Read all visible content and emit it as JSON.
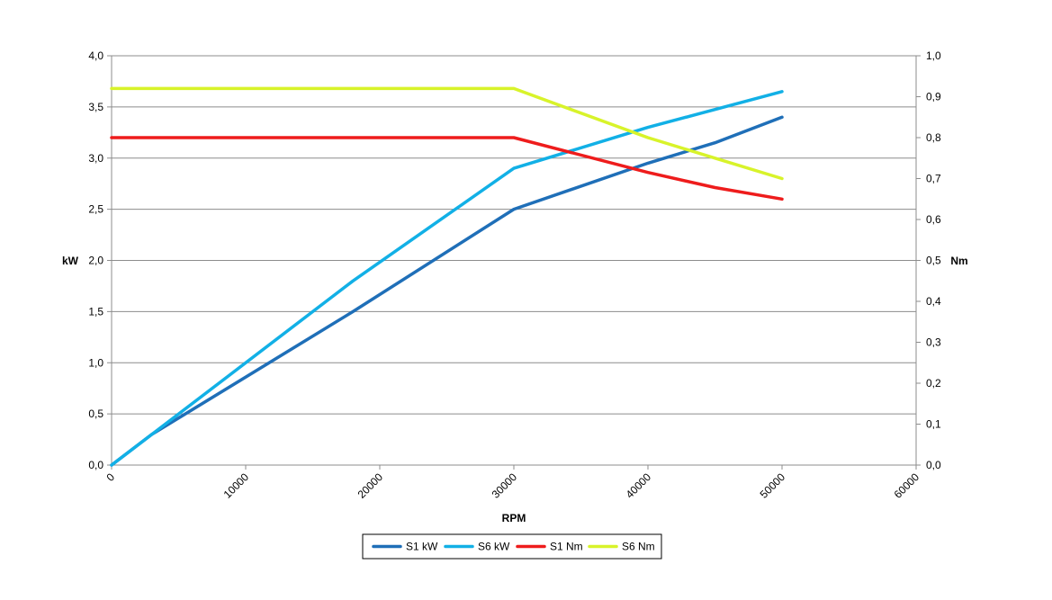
{
  "chart_data": {
    "type": "line",
    "title": "",
    "xlabel": "RPM",
    "ylabel_left": "kW",
    "ylabel_right": "Nm",
    "xlim": [
      0,
      60000
    ],
    "ylim_left": [
      0,
      4
    ],
    "ylim_right": [
      0,
      1
    ],
    "x_ticks": [
      0,
      10000,
      20000,
      30000,
      40000,
      50000,
      60000
    ],
    "x_tick_labels": [
      "0",
      "10000",
      "20000",
      "30000",
      "40000",
      "50000",
      "60000"
    ],
    "y_left_ticks": [
      0,
      0.5,
      1,
      1.5,
      2,
      2.5,
      3,
      3.5,
      4
    ],
    "y_left_tick_labels": [
      "0,0",
      "0,5",
      "1,0",
      "1,5",
      "2,0",
      "2,5",
      "3,0",
      "3,5",
      "4,0"
    ],
    "y_right_ticks": [
      0,
      0.1,
      0.2,
      0.3,
      0.4,
      0.5,
      0.6,
      0.7,
      0.8,
      0.9,
      1
    ],
    "y_right_tick_labels": [
      "0,0",
      "0,1",
      "0,2",
      "0,3",
      "0,4",
      "0,5",
      "0,6",
      "0,7",
      "0,8",
      "0,9",
      "1,0"
    ],
    "grid": true,
    "legend_position": "bottom",
    "series": [
      {
        "name": "S1 kW",
        "axis": "left",
        "color": "#1f6fb8",
        "x": [
          0,
          3000,
          18000,
          30000,
          40000,
          45000,
          50000
        ],
        "y": [
          0,
          0.3,
          1.5,
          2.5,
          2.95,
          3.15,
          3.4
        ]
      },
      {
        "name": "S6 kW",
        "axis": "left",
        "color": "#12b0e6",
        "x": [
          0,
          3000,
          18000,
          30000,
          40000,
          50000
        ],
        "y": [
          0,
          0.3,
          1.8,
          2.9,
          3.3,
          3.65
        ]
      },
      {
        "name": "S1 Nm",
        "axis": "right",
        "color": "#ee1c1c",
        "x": [
          0,
          30000,
          40000,
          45000,
          50000
        ],
        "y": [
          0.8,
          0.8,
          0.715,
          0.678,
          0.65
        ]
      },
      {
        "name": "S6 Nm",
        "axis": "right",
        "color": "#d8f32a",
        "x": [
          0,
          30000,
          40000,
          45000,
          50000
        ],
        "y": [
          0.92,
          0.92,
          0.8,
          0.75,
          0.7
        ]
      }
    ]
  }
}
